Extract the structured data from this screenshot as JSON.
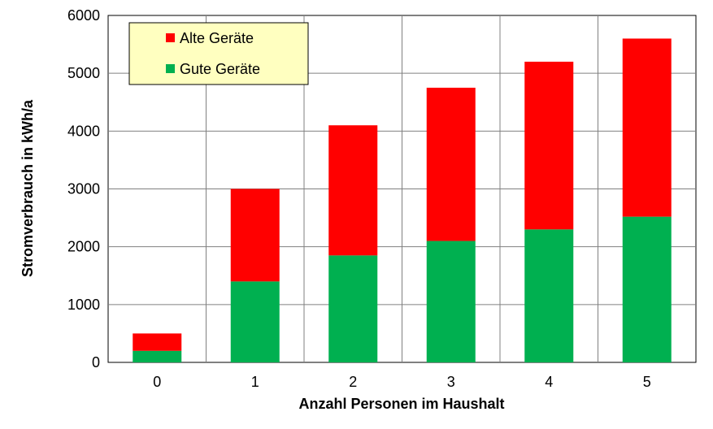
{
  "chart_data": {
    "type": "bar",
    "stacked": true,
    "title": "",
    "xlabel": "Anzahl Personen im Haushalt",
    "ylabel": "Stromverbrauch in kWh/a",
    "categories": [
      "0",
      "1",
      "2",
      "3",
      "4",
      "5"
    ],
    "ylim": [
      0,
      6000
    ],
    "yticks": [
      0,
      1000,
      2000,
      3000,
      4000,
      5000,
      6000
    ],
    "grid": true,
    "legend_position": "top-left",
    "series": [
      {
        "name": "Gute Geräte",
        "color": "#00b050",
        "values": [
          200,
          1400,
          1850,
          2100,
          2300,
          2520
        ]
      },
      {
        "name": "Alte Geräte",
        "color": "#ff0000",
        "values": [
          300,
          1600,
          2250,
          2650,
          2900,
          3080
        ]
      }
    ],
    "legend_order": [
      "Alte Geräte",
      "Gute Geräte"
    ],
    "legend_background": "#ffffc0"
  }
}
